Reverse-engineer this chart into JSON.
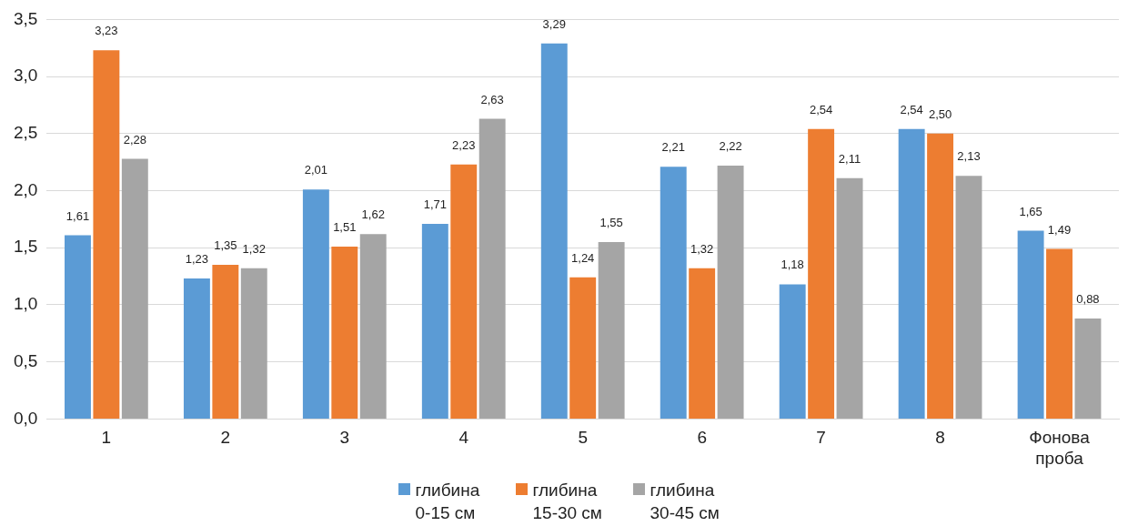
{
  "chart_data": {
    "type": "bar",
    "categories": [
      "1",
      "2",
      "3",
      "4",
      "5",
      "6",
      "7",
      "8",
      "Фонова проба"
    ],
    "series": [
      {
        "name": "глибина 0-15 см",
        "color": "#5b9bd5",
        "values": [
          1.61,
          1.23,
          2.01,
          1.71,
          3.29,
          2.21,
          1.18,
          2.54,
          1.65
        ],
        "value_labels": [
          "1,61",
          "1,23",
          "2,01",
          "1,71",
          "3,29",
          "2,21",
          "1,18",
          "2,54",
          "1,65"
        ]
      },
      {
        "name": "глибина 15-30 см",
        "color": "#ed7d31",
        "values": [
          3.23,
          1.35,
          1.51,
          2.23,
          1.24,
          1.32,
          2.54,
          2.5,
          1.49
        ],
        "value_labels": [
          "3,23",
          "1,35",
          "1,51",
          "2,23",
          "1,24",
          "1,32",
          "2,54",
          "2,50",
          "1,49"
        ]
      },
      {
        "name": "глибина 30-45 см",
        "color": "#a5a5a5",
        "values": [
          2.28,
          1.32,
          1.62,
          2.63,
          1.55,
          2.22,
          2.11,
          2.13,
          0.88
        ],
        "value_labels": [
          "2,28",
          "1,32",
          "1,62",
          "2,63",
          "1,55",
          "2,22",
          "2,11",
          "2,13",
          "0,88"
        ]
      }
    ],
    "ylim": [
      0,
      3.5
    ],
    "yticks": [
      {
        "value": 0,
        "label": "0,0"
      },
      {
        "value": 0.5,
        "label": "0,5"
      },
      {
        "value": 1,
        "label": "1,0"
      },
      {
        "value": 1.5,
        "label": "1,5"
      },
      {
        "value": 2,
        "label": "2,0"
      },
      {
        "value": 2.5,
        "label": "2,5"
      },
      {
        "value": 3,
        "label": "3,0"
      },
      {
        "value": 3.5,
        "label": "3,5"
      }
    ],
    "grid": "y",
    "legend": "bottom"
  }
}
